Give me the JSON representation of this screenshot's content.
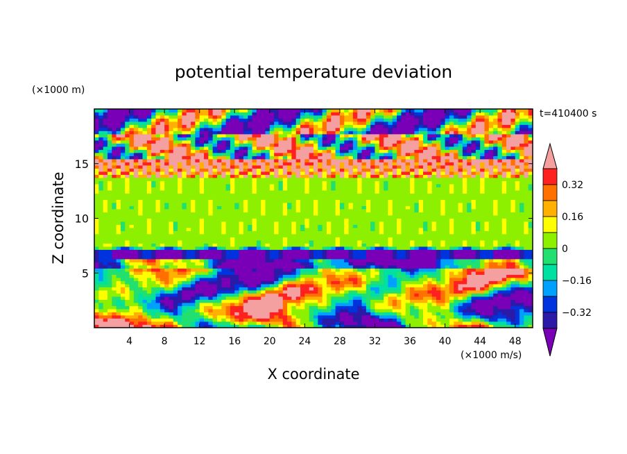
{
  "chart_data": {
    "type": "heatmap",
    "title": "potential temperature deviation",
    "xlabel": "X coordinate",
    "ylabel": "Z coordinate",
    "x_unit": "(×1000 m/s)",
    "y_unit": "(×1000 m)",
    "time_label": "t=410400 s",
    "xlim": [
      0,
      50
    ],
    "ylim": [
      0,
      20
    ],
    "x_ticks": [
      4,
      8,
      12,
      16,
      20,
      24,
      28,
      32,
      36,
      40,
      44,
      48
    ],
    "y_ticks": [
      5,
      10,
      15
    ],
    "colorbar": {
      "levels": [
        -0.4,
        -0.32,
        -0.24,
        -0.16,
        -0.08,
        0,
        0.08,
        0.16,
        0.24,
        0.32,
        0.4
      ],
      "tick_labels": [
        "0.32",
        "0.16",
        "0",
        "−0.16",
        "−0.32"
      ],
      "tick_values": [
        0.32,
        0.16,
        0,
        -0.16,
        -0.32
      ],
      "colors": [
        "#7a00b8",
        "#2b1aa8",
        "#0033dd",
        "#00a0ff",
        "#00e0a0",
        "#22e070",
        "#8cf000",
        "#ffff00",
        "#ffb000",
        "#ff7000",
        "#ff2020",
        "#f4a0a0"
      ]
    }
  }
}
